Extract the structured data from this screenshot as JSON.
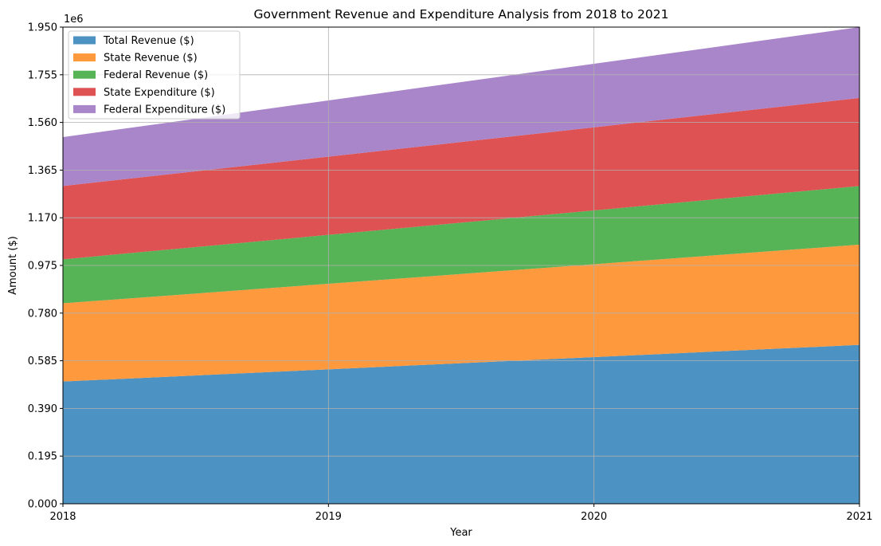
{
  "chart_data": {
    "type": "area",
    "stacked": true,
    "title": "Government Revenue and Expenditure Analysis from 2018 to 2021",
    "xlabel": "Year",
    "ylabel": "Amount ($)",
    "y_scale_label": "1e6",
    "x": [
      "2018",
      "2019",
      "2020",
      "2021"
    ],
    "xlim": [
      "2018",
      "2021"
    ],
    "ylim": [
      0,
      1950000
    ],
    "y_ticks": [
      "0.000",
      "0.195",
      "0.390",
      "0.585",
      "0.780",
      "0.975",
      "1.170",
      "1.365",
      "1.560",
      "1.755",
      "1.950"
    ],
    "grid": true,
    "legend_position": "top-left",
    "series": [
      {
        "name": "Total Revenue ($)",
        "color": "#4c92c3",
        "values": [
          500000,
          550000,
          600000,
          650000
        ]
      },
      {
        "name": "State Revenue ($)",
        "color": "#ff993e",
        "values": [
          320000,
          350000,
          380000,
          410000
        ]
      },
      {
        "name": "Federal Revenue ($)",
        "color": "#56b356",
        "values": [
          180000,
          200000,
          220000,
          240000
        ]
      },
      {
        "name": "State Expenditure ($)",
        "color": "#de5253",
        "values": [
          300000,
          320000,
          340000,
          360000
        ]
      },
      {
        "name": "Federal Expenditure ($)",
        "color": "#a985ca",
        "values": [
          200000,
          230000,
          260000,
          290000
        ]
      }
    ]
  }
}
